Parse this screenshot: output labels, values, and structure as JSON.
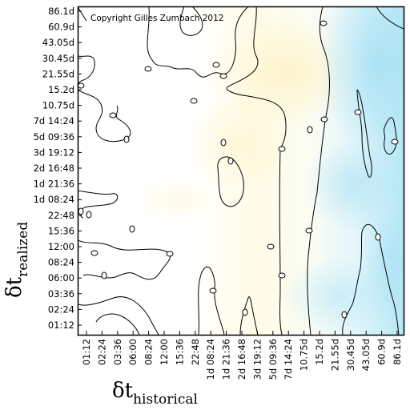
{
  "chart_data": {
    "type": "heatmap",
    "title": "",
    "copyright": "Copyright Gilles Zumbach 2012",
    "xlabel": {
      "symbol": "δt",
      "subscript": "historical"
    },
    "ylabel": {
      "symbol": "δt",
      "subscript": "realized"
    },
    "x_ticks": [
      "01:12",
      "02:24",
      "03:36",
      "06:00",
      "08:24",
      "12:00",
      "15:36",
      "22:48",
      "1d 08:24",
      "1d 21:36",
      "2d 16:48",
      "3d 19:12",
      "5d 09:36",
      "7d 14:24",
      "10.75d",
      "15.2d",
      "21.55d",
      "30.45d",
      "43.05d",
      "60.9d",
      "86.1d"
    ],
    "y_ticks": [
      "86.1d",
      "60.9d",
      "43.05d",
      "30.45d",
      "21.55d",
      "15.2d",
      "10.75d",
      "7d 14:24",
      "5d 09:36",
      "3d 19:12",
      "2d 16:48",
      "1d 21:36",
      "1d 08:24",
      "22:48",
      "15:36",
      "12:00",
      "08:24",
      "06:00",
      "03:36",
      "02:24",
      "01:12"
    ],
    "colorscale": [
      "#ffffff",
      "#fff9e0",
      "#e0f4fb",
      "#b8e8f6"
    ],
    "contour_level": "single contour level (values not printed)",
    "grid": false,
    "legend": "none"
  }
}
